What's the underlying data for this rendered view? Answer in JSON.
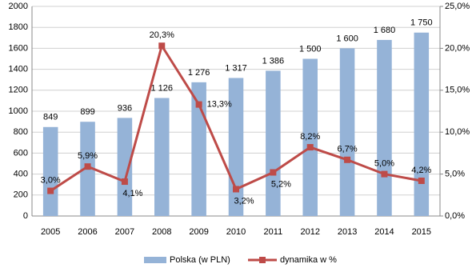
{
  "chart_data": {
    "type": "bar",
    "categories": [
      "2005",
      "2006",
      "2007",
      "2008",
      "2009",
      "2010",
      "2011",
      "2012",
      "2013",
      "2014",
      "2015"
    ],
    "series": [
      {
        "name": "Polska (w PLN)",
        "type": "bar",
        "color": "#95b3d7",
        "values": [
          849,
          899,
          936,
          1126,
          1276,
          1317,
          1386,
          1500,
          1600,
          1680,
          1750
        ],
        "value_labels": [
          "849",
          "899",
          "936",
          "1 126",
          "1 276",
          "1 317",
          "1 386",
          "1 500",
          "1 600",
          "1 680",
          "1 750"
        ]
      },
      {
        "name": "dynamika w %",
        "type": "line",
        "axis": "y2",
        "color": "#be4b48",
        "values": [
          3.0,
          5.9,
          4.1,
          20.3,
          13.3,
          3.2,
          5.2,
          8.2,
          6.7,
          5.0,
          4.2
        ],
        "value_labels": [
          "3,0%",
          "5,9%",
          "4,1%",
          "20,3%",
          "13,3%",
          "3,2%",
          "5,2%",
          "8,2%",
          "6,7%",
          "5,0%",
          "4,2%"
        ]
      }
    ],
    "ylim": [
      0,
      2000
    ],
    "yticks": [
      0,
      200,
      400,
      600,
      800,
      1000,
      1200,
      1400,
      1600,
      1800,
      2000
    ],
    "y2lim": [
      0,
      25
    ],
    "y2ticks": [
      {
        "value": 0,
        "label": "0,0%"
      },
      {
        "value": 5,
        "label": "5,0%"
      },
      {
        "value": 10,
        "label": "10,0%"
      },
      {
        "value": 15,
        "label": "15,0%"
      },
      {
        "value": 20,
        "label": "20,0%"
      },
      {
        "value": 25,
        "label": "25,0%"
      }
    ],
    "grid": true,
    "legend": "bottom"
  }
}
